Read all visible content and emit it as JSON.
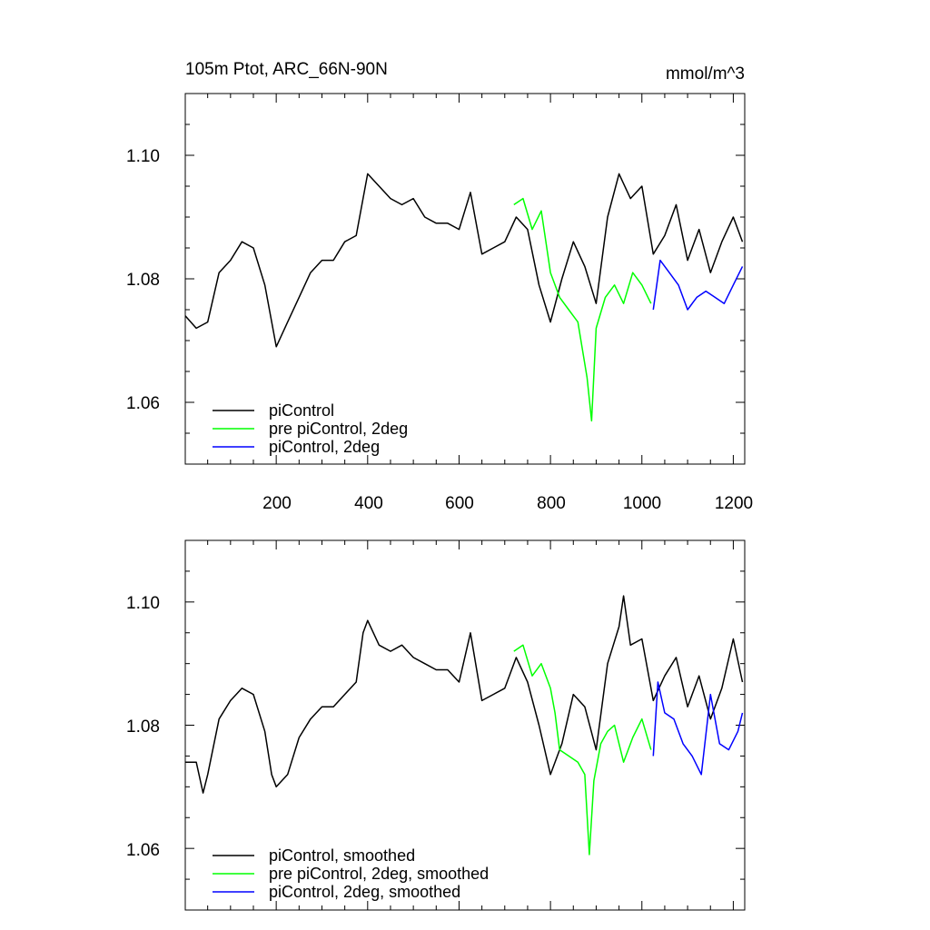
{
  "chart_data": [
    {
      "type": "line",
      "title": "105m Ptot, ARC_66N-90N",
      "units": "mmol/m^3",
      "xlim": [
        1,
        1225
      ],
      "ylim": [
        1.05,
        1.11
      ],
      "x_ticks": [
        200,
        400,
        600,
        800,
        1000,
        1200
      ],
      "y_ticks": [
        1.06,
        1.08,
        1.1
      ],
      "y_tick_labels": [
        "1.06",
        "1.08",
        "1.10"
      ],
      "legend_position": "bottom-left",
      "series": [
        {
          "name": "piControl",
          "color": "#000000",
          "x": [
            1,
            25,
            50,
            75,
            100,
            125,
            150,
            175,
            200,
            225,
            250,
            275,
            300,
            325,
            350,
            375,
            400,
            425,
            450,
            475,
            500,
            525,
            550,
            575,
            600,
            625,
            650,
            675,
            700,
            725,
            750,
            775,
            800,
            825,
            850,
            875,
            900,
            925,
            950,
            975,
            1000,
            1025,
            1050,
            1075,
            1100,
            1125,
            1150,
            1175,
            1200,
            1220
          ],
          "y": [
            1.074,
            1.072,
            1.073,
            1.081,
            1.083,
            1.086,
            1.085,
            1.079,
            1.069,
            1.073,
            1.077,
            1.081,
            1.083,
            1.083,
            1.086,
            1.087,
            1.097,
            1.095,
            1.093,
            1.092,
            1.093,
            1.09,
            1.089,
            1.089,
            1.088,
            1.094,
            1.084,
            1.085,
            1.086,
            1.09,
            1.088,
            1.079,
            1.073,
            1.08,
            1.086,
            1.082,
            1.076,
            1.09,
            1.097,
            1.093,
            1.095,
            1.084,
            1.087,
            1.092,
            1.083,
            1.088,
            1.081,
            1.086,
            1.09,
            1.086
          ]
        },
        {
          "name": "pre piControl, 2deg",
          "color": "#00ff00",
          "x": [
            720,
            740,
            760,
            780,
            800,
            820,
            840,
            860,
            880,
            890,
            900,
            920,
            940,
            960,
            980,
            1000,
            1020
          ],
          "y": [
            1.092,
            1.093,
            1.088,
            1.091,
            1.081,
            1.077,
            1.075,
            1.073,
            1.064,
            1.057,
            1.072,
            1.077,
            1.079,
            1.076,
            1.081,
            1.079,
            1.076
          ]
        },
        {
          "name": "piControl, 2deg",
          "color": "#0000ff",
          "x": [
            1025,
            1040,
            1060,
            1080,
            1100,
            1120,
            1140,
            1160,
            1180,
            1200,
            1220
          ],
          "y": [
            1.075,
            1.083,
            1.081,
            1.079,
            1.075,
            1.077,
            1.078,
            1.077,
            1.076,
            1.079,
            1.082
          ]
        }
      ]
    },
    {
      "type": "line",
      "title": "",
      "xlim": [
        1,
        1225
      ],
      "ylim": [
        1.05,
        1.11
      ],
      "y_ticks": [
        1.06,
        1.08,
        1.1
      ],
      "y_tick_labels": [
        "1.06",
        "1.08",
        "1.10"
      ],
      "legend_position": "bottom-left",
      "series": [
        {
          "name": "piControl, smoothed",
          "color": "#000000",
          "x": [
            1,
            25,
            40,
            50,
            75,
            100,
            125,
            150,
            175,
            190,
            200,
            225,
            250,
            275,
            300,
            325,
            350,
            375,
            390,
            400,
            425,
            450,
            475,
            500,
            525,
            550,
            575,
            600,
            625,
            650,
            675,
            700,
            725,
            750,
            775,
            800,
            825,
            850,
            875,
            900,
            925,
            950,
            960,
            975,
            1000,
            1025,
            1050,
            1075,
            1100,
            1125,
            1150,
            1175,
            1200,
            1220
          ],
          "y": [
            1.074,
            1.074,
            1.069,
            1.072,
            1.081,
            1.084,
            1.086,
            1.085,
            1.079,
            1.072,
            1.07,
            1.072,
            1.078,
            1.081,
            1.083,
            1.083,
            1.085,
            1.087,
            1.095,
            1.097,
            1.093,
            1.092,
            1.093,
            1.091,
            1.09,
            1.089,
            1.089,
            1.087,
            1.095,
            1.084,
            1.085,
            1.086,
            1.091,
            1.087,
            1.08,
            1.072,
            1.077,
            1.085,
            1.083,
            1.076,
            1.09,
            1.096,
            1.101,
            1.093,
            1.094,
            1.084,
            1.088,
            1.091,
            1.083,
            1.088,
            1.081,
            1.086,
            1.094,
            1.087
          ]
        },
        {
          "name": "pre piControl, 2deg, smoothed",
          "color": "#00ff00",
          "x": [
            720,
            740,
            760,
            780,
            800,
            810,
            820,
            840,
            860,
            875,
            885,
            895,
            910,
            925,
            940,
            960,
            980,
            1000,
            1020
          ],
          "y": [
            1.092,
            1.093,
            1.088,
            1.09,
            1.086,
            1.082,
            1.076,
            1.075,
            1.074,
            1.072,
            1.059,
            1.071,
            1.077,
            1.079,
            1.08,
            1.074,
            1.078,
            1.081,
            1.076
          ]
        },
        {
          "name": "piControl, 2deg, smoothed",
          "color": "#0000ff",
          "x": [
            1025,
            1035,
            1050,
            1070,
            1090,
            1110,
            1130,
            1150,
            1170,
            1190,
            1210,
            1220
          ],
          "y": [
            1.075,
            1.087,
            1.082,
            1.081,
            1.077,
            1.075,
            1.072,
            1.085,
            1.077,
            1.076,
            1.079,
            1.082
          ]
        }
      ]
    }
  ]
}
